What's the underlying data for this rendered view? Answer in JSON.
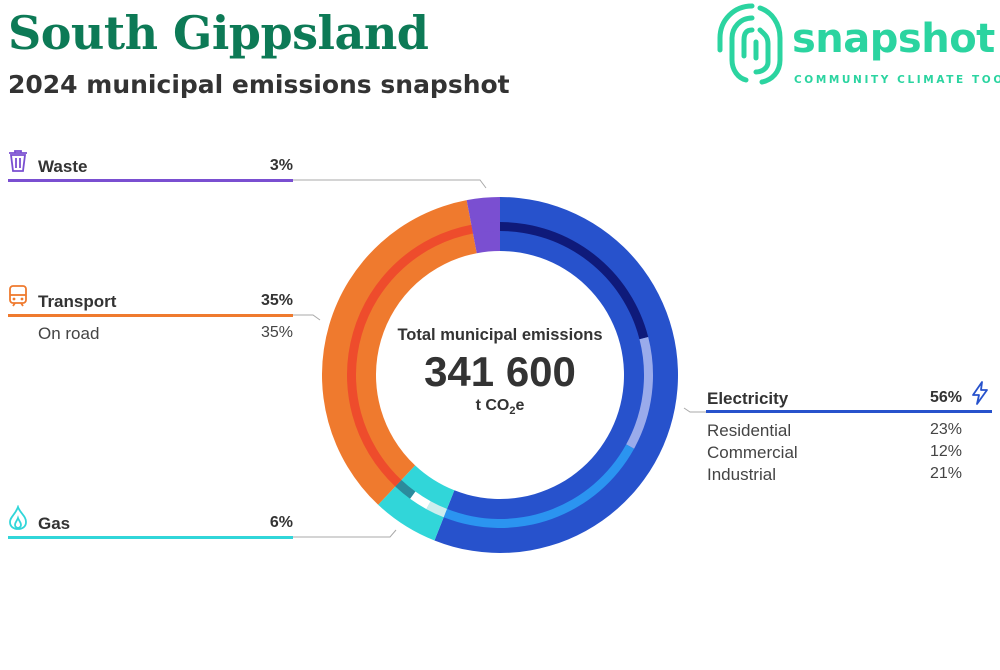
{
  "header": {
    "title": "South Gippsland",
    "subtitle": "2024 municipal emissions snapshot"
  },
  "logo": {
    "word": "snapshot",
    "tagline": "COMMUNITY CLIMATE TOOL",
    "icon": "fingerprint-icon"
  },
  "colors": {
    "title": "#0d7a56",
    "logo": "#2bd4a0",
    "waste": "#7a4fd1",
    "transport": "#ef7a2e",
    "gas": "#31d6d9",
    "electricity": "#2752cc",
    "leader_line": "#a9a9a9"
  },
  "center": {
    "label": "Total municipal emissions",
    "value": "341 600",
    "unit_prefix": "t CO",
    "unit_sub": "2",
    "unit_suffix": "e"
  },
  "categories": {
    "waste": {
      "name": "Waste",
      "pct": "3%",
      "icon": "trash-bin-icon"
    },
    "transport": {
      "name": "Transport",
      "pct": "35%",
      "icon": "train-icon",
      "subs": [
        {
          "name": "On road",
          "pct": "35%"
        }
      ]
    },
    "gas": {
      "name": "Gas",
      "pct": "6%",
      "icon": "flame-icon"
    },
    "electricity": {
      "name": "Electricity",
      "pct": "56%",
      "icon": "lightning-bolt-icon",
      "subs": [
        {
          "name": "Residential",
          "pct": "23%"
        },
        {
          "name": "Commercial",
          "pct": "12%"
        },
        {
          "name": "Industrial",
          "pct": "21%"
        }
      ]
    }
  },
  "chart_data": {
    "type": "pie",
    "title": "Total municipal emissions",
    "total": 341600,
    "unit": "t CO2e",
    "outer_ring": [
      {
        "name": "Electricity",
        "value": 56,
        "color": "#2752cc"
      },
      {
        "name": "Gas",
        "value": 6,
        "color": "#31d6d9"
      },
      {
        "name": "Transport",
        "value": 35,
        "color": "#ef7a2e"
      },
      {
        "name": "Waste",
        "value": 3,
        "color": "#7a4fd1"
      }
    ],
    "inner_ring": [
      {
        "name": "Industrial",
        "parent": "Electricity",
        "value": 21,
        "color": "#0f1a7a"
      },
      {
        "name": "Commercial",
        "parent": "Electricity",
        "value": 12,
        "color": "#9aabeb"
      },
      {
        "name": "Residential",
        "parent": "Electricity",
        "value": 23,
        "color": "#2b94f0"
      },
      {
        "name": "Gas (light)",
        "parent": "Gas",
        "value": 2,
        "color": "#cdeeee"
      },
      {
        "name": "Gas (mid)",
        "parent": "Gas",
        "value": 2,
        "color": "#ffffff"
      },
      {
        "name": "Gas (dark)",
        "parent": "Gas",
        "value": 2,
        "color": "#2b8a9c"
      },
      {
        "name": "On road",
        "parent": "Transport",
        "value": 35,
        "color": "#ee4c2c"
      },
      {
        "name": "Waste (inner)",
        "parent": "Waste",
        "value": 3,
        "color": "#7a4fd1"
      }
    ]
  }
}
